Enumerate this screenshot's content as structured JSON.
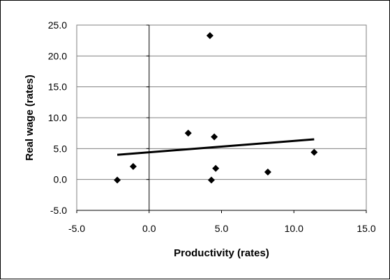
{
  "chart_data": {
    "type": "scatter",
    "title": "",
    "xlabel": "Productivity (rates)",
    "ylabel": "Real wage (rates)",
    "xlim": [
      -5.0,
      15.0
    ],
    "ylim": [
      -5.0,
      25.0
    ],
    "x_ticks": [
      -5.0,
      0.0,
      5.0,
      10.0,
      15.0
    ],
    "y_ticks": [
      -5.0,
      0.0,
      5.0,
      10.0,
      15.0,
      20.0,
      25.0
    ],
    "x_tick_labels": [
      "-5.0",
      "0.0",
      "5.0",
      "10.0",
      "15.0"
    ],
    "y_tick_labels": [
      "-5.0",
      "0.0",
      "5.0",
      "10.0",
      "15.0",
      "20.0",
      "25.0"
    ],
    "grid": "horizontal",
    "legend": "none",
    "series": [
      {
        "marker": "diamond",
        "color": "#000000",
        "points": [
          {
            "x": -2.2,
            "y": -0.1
          },
          {
            "x": -1.1,
            "y": 2.1
          },
          {
            "x": 2.7,
            "y": 7.5
          },
          {
            "x": 4.2,
            "y": 23.3
          },
          {
            "x": 4.5,
            "y": 6.9
          },
          {
            "x": 4.3,
            "y": -0.1
          },
          {
            "x": 4.6,
            "y": 1.8
          },
          {
            "x": 8.2,
            "y": 1.2
          },
          {
            "x": 11.4,
            "y": 4.4
          }
        ]
      }
    ],
    "trendline": {
      "type": "linear",
      "color": "#000000",
      "from": {
        "x": -2.2,
        "y": 4.0
      },
      "to": {
        "x": 11.4,
        "y": 6.5
      }
    }
  }
}
